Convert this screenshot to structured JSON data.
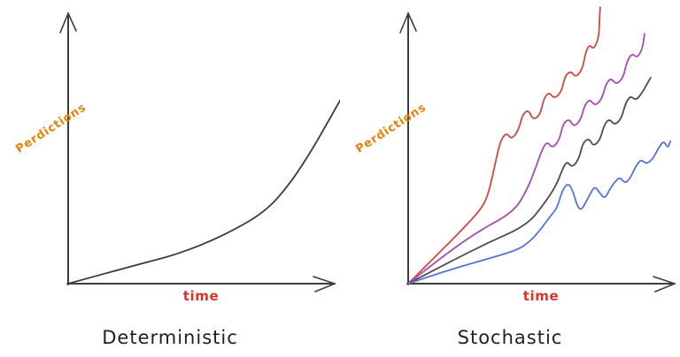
{
  "page": {
    "background": "#ffffff"
  },
  "axis": {
    "color": "#3d3d3d"
  },
  "label_colors": {
    "ylabel": "#e8820c",
    "xlabel": "#d6362b",
    "title": "#1f1f1f"
  },
  "chart_data": [
    {
      "type": "line",
      "title": "Deterministic",
      "xlabel": "time",
      "ylabel": "Perdictions",
      "x_range": [
        0,
        1
      ],
      "y_range": [
        0,
        1
      ],
      "grid": false,
      "legend": false,
      "axis_arrows": true,
      "style": "hand-drawn sketch, unlabeled conceptual axes",
      "series": [
        {
          "name": "deterministic-growth-curve",
          "color": "#3a3a3a",
          "points": [
            [
              0,
              0
            ],
            [
              0.243,
              0.067
            ],
            [
              0.41,
              0.11
            ],
            [
              0.577,
              0.177
            ],
            [
              0.743,
              0.27
            ],
            [
              0.843,
              0.387
            ],
            [
              0.927,
              0.52
            ],
            [
              0.993,
              0.637
            ],
            [
              1.05,
              0.737
            ]
          ]
        }
      ]
    },
    {
      "type": "line",
      "title": "Stochastic",
      "xlabel": "time",
      "ylabel": "Perdictions",
      "x_range": [
        0,
        1
      ],
      "y_range": [
        0,
        1
      ],
      "grid": false,
      "legend": false,
      "axis_arrows": true,
      "style": "hand-drawn sketch, four noisy rising trajectories fanning out from origin (top to bottom: red, purple, gray, blue)",
      "series": [
        {
          "name": "trajectory-red",
          "color": "#d14840",
          "points": [
            [
              0,
              0
            ],
            [
              0.097,
              0.097
            ],
            [
              0.197,
              0.197
            ],
            [
              0.28,
              0.287
            ],
            [
              0.303,
              0.343
            ],
            [
              0.32,
              0.417
            ],
            [
              0.337,
              0.497
            ],
            [
              0.35,
              0.543
            ],
            [
              0.37,
              0.57
            ],
            [
              0.39,
              0.543
            ],
            [
              0.417,
              0.583
            ],
            [
              0.43,
              0.637
            ],
            [
              0.453,
              0.657
            ],
            [
              0.47,
              0.617
            ],
            [
              0.497,
              0.637
            ],
            [
              0.51,
              0.697
            ],
            [
              0.53,
              0.723
            ],
            [
              0.55,
              0.697
            ],
            [
              0.577,
              0.723
            ],
            [
              0.59,
              0.783
            ],
            [
              0.613,
              0.803
            ],
            [
              0.63,
              0.777
            ],
            [
              0.657,
              0.81
            ],
            [
              0.667,
              0.87
            ],
            [
              0.683,
              0.903
            ],
            [
              0.697,
              0.883
            ],
            [
              0.717,
              0.923
            ],
            [
              0.72,
              0.99
            ],
            [
              0.723,
              1.043
            ]
          ]
        },
        {
          "name": "trajectory-purple",
          "color": "#a74ab5",
          "points": [
            [
              0,
              0
            ],
            [
              0.13,
              0.103
            ],
            [
              0.263,
              0.197
            ],
            [
              0.397,
              0.27
            ],
            [
              0.447,
              0.353
            ],
            [
              0.48,
              0.437
            ],
            [
              0.503,
              0.503
            ],
            [
              0.523,
              0.537
            ],
            [
              0.543,
              0.51
            ],
            [
              0.57,
              0.543
            ],
            [
              0.583,
              0.603
            ],
            [
              0.607,
              0.623
            ],
            [
              0.623,
              0.59
            ],
            [
              0.65,
              0.617
            ],
            [
              0.663,
              0.67
            ],
            [
              0.683,
              0.697
            ],
            [
              0.703,
              0.67
            ],
            [
              0.73,
              0.697
            ],
            [
              0.743,
              0.75
            ],
            [
              0.763,
              0.777
            ],
            [
              0.783,
              0.75
            ],
            [
              0.81,
              0.777
            ],
            [
              0.823,
              0.837
            ],
            [
              0.843,
              0.87
            ],
            [
              0.863,
              0.85
            ],
            [
              0.883,
              0.89
            ],
            [
              0.89,
              0.943
            ]
          ]
        },
        {
          "name": "trajectory-gray",
          "color": "#4f4b4d",
          "points": [
            [
              0,
              0
            ],
            [
              0.147,
              0.077
            ],
            [
              0.297,
              0.153
            ],
            [
              0.447,
              0.22
            ],
            [
              0.513,
              0.303
            ],
            [
              0.557,
              0.37
            ],
            [
              0.58,
              0.43
            ],
            [
              0.597,
              0.463
            ],
            [
              0.617,
              0.437
            ],
            [
              0.643,
              0.47
            ],
            [
              0.657,
              0.53
            ],
            [
              0.68,
              0.55
            ],
            [
              0.697,
              0.517
            ],
            [
              0.723,
              0.543
            ],
            [
              0.737,
              0.597
            ],
            [
              0.757,
              0.623
            ],
            [
              0.777,
              0.597
            ],
            [
              0.803,
              0.623
            ],
            [
              0.817,
              0.677
            ],
            [
              0.837,
              0.71
            ],
            [
              0.857,
              0.69
            ],
            [
              0.883,
              0.723
            ],
            [
              0.897,
              0.75
            ],
            [
              0.913,
              0.777
            ]
          ]
        },
        {
          "name": "trajectory-blue",
          "color": "#5671dc",
          "points": [
            [
              0,
              0
            ],
            [
              0.147,
              0.05
            ],
            [
              0.297,
              0.093
            ],
            [
              0.413,
              0.127
            ],
            [
              0.463,
              0.163
            ],
            [
              0.503,
              0.21
            ],
            [
              0.537,
              0.257
            ],
            [
              0.557,
              0.28
            ],
            [
              0.57,
              0.317
            ],
            [
              0.583,
              0.357
            ],
            [
              0.603,
              0.38
            ],
            [
              0.62,
              0.35
            ],
            [
              0.637,
              0.29
            ],
            [
              0.653,
              0.277
            ],
            [
              0.67,
              0.31
            ],
            [
              0.69,
              0.347
            ],
            [
              0.703,
              0.367
            ],
            [
              0.723,
              0.34
            ],
            [
              0.74,
              0.32
            ],
            [
              0.757,
              0.353
            ],
            [
              0.777,
              0.383
            ],
            [
              0.797,
              0.403
            ],
            [
              0.817,
              0.377
            ],
            [
              0.837,
              0.4
            ],
            [
              0.857,
              0.443
            ],
            [
              0.877,
              0.47
            ],
            [
              0.897,
              0.45
            ],
            [
              0.923,
              0.473
            ],
            [
              0.943,
              0.513
            ],
            [
              0.963,
              0.54
            ],
            [
              0.977,
              0.51
            ],
            [
              0.987,
              0.537
            ]
          ]
        }
      ]
    }
  ]
}
